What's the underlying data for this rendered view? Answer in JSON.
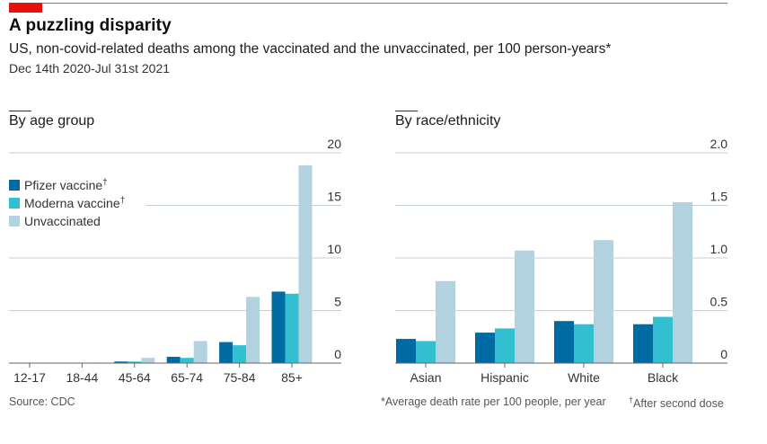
{
  "header": {
    "title": "A puzzling disparity",
    "subtitle": "US, non-covid-related deaths among the vaccinated and the unvaccinated, per 100 person-years*",
    "dates": "Dec 14th 2020-Jul 31st 2021"
  },
  "colors": {
    "brand_red": "#e3120b",
    "pfizer": "#006ba2",
    "moderna": "#32c0d1",
    "unvaccinated": "#b3d2e0",
    "grid": "#c3d0d8",
    "axis": "#666666"
  },
  "legend": [
    {
      "label": "Pfizer vaccine",
      "mark": "†",
      "key": "pfizer"
    },
    {
      "label": "Moderna vaccine",
      "mark": "†",
      "key": "moderna"
    },
    {
      "label": "Unvaccinated",
      "mark": "",
      "key": "unvaccinated"
    }
  ],
  "footer": {
    "source": "Source: CDC",
    "note": "*Average death rate per 100 people, per year",
    "dagger_mark": "†",
    "dagger_note": "After second dose"
  },
  "chart_data": [
    {
      "type": "bar",
      "title": "By age group",
      "xlabel": "",
      "ylabel": "",
      "categories": [
        "12-17",
        "18-44",
        "45-64",
        "65-74",
        "75-84",
        "85+"
      ],
      "series": [
        {
          "name": "Pfizer vaccine†",
          "key": "pfizer",
          "values": [
            0.0,
            0.02,
            0.15,
            0.6,
            2.0,
            6.8
          ]
        },
        {
          "name": "Moderna vaccine†",
          "key": "moderna",
          "values": [
            0.0,
            0.02,
            0.15,
            0.5,
            1.7,
            6.6
          ]
        },
        {
          "name": "Unvaccinated",
          "key": "unvaccinated",
          "values": [
            0.0,
            0.05,
            0.5,
            2.1,
            6.3,
            18.8
          ]
        }
      ],
      "ylim": [
        0,
        20
      ],
      "yticks": [
        0,
        5,
        10,
        15,
        20
      ],
      "ytick_labels": [
        "0",
        "5",
        "10",
        "15",
        "20"
      ],
      "grid": true,
      "y_axis_side": "right",
      "legend_position": "top-left"
    },
    {
      "type": "bar",
      "title": "By race/ethnicity",
      "xlabel": "",
      "ylabel": "",
      "categories": [
        "Asian",
        "Hispanic",
        "White",
        "Black"
      ],
      "series": [
        {
          "name": "Pfizer vaccine†",
          "key": "pfizer",
          "values": [
            0.23,
            0.29,
            0.4,
            0.37
          ]
        },
        {
          "name": "Moderna vaccine†",
          "key": "moderna",
          "values": [
            0.21,
            0.33,
            0.37,
            0.44
          ]
        },
        {
          "name": "Unvaccinated",
          "key": "unvaccinated",
          "values": [
            0.78,
            1.07,
            1.17,
            1.53
          ]
        }
      ],
      "ylim": [
        0,
        2.0
      ],
      "yticks": [
        0,
        0.5,
        1.0,
        1.5,
        2.0
      ],
      "ytick_labels": [
        "0",
        "0.5",
        "1.0",
        "1.5",
        "2.0"
      ],
      "grid": true,
      "y_axis_side": "right"
    }
  ]
}
